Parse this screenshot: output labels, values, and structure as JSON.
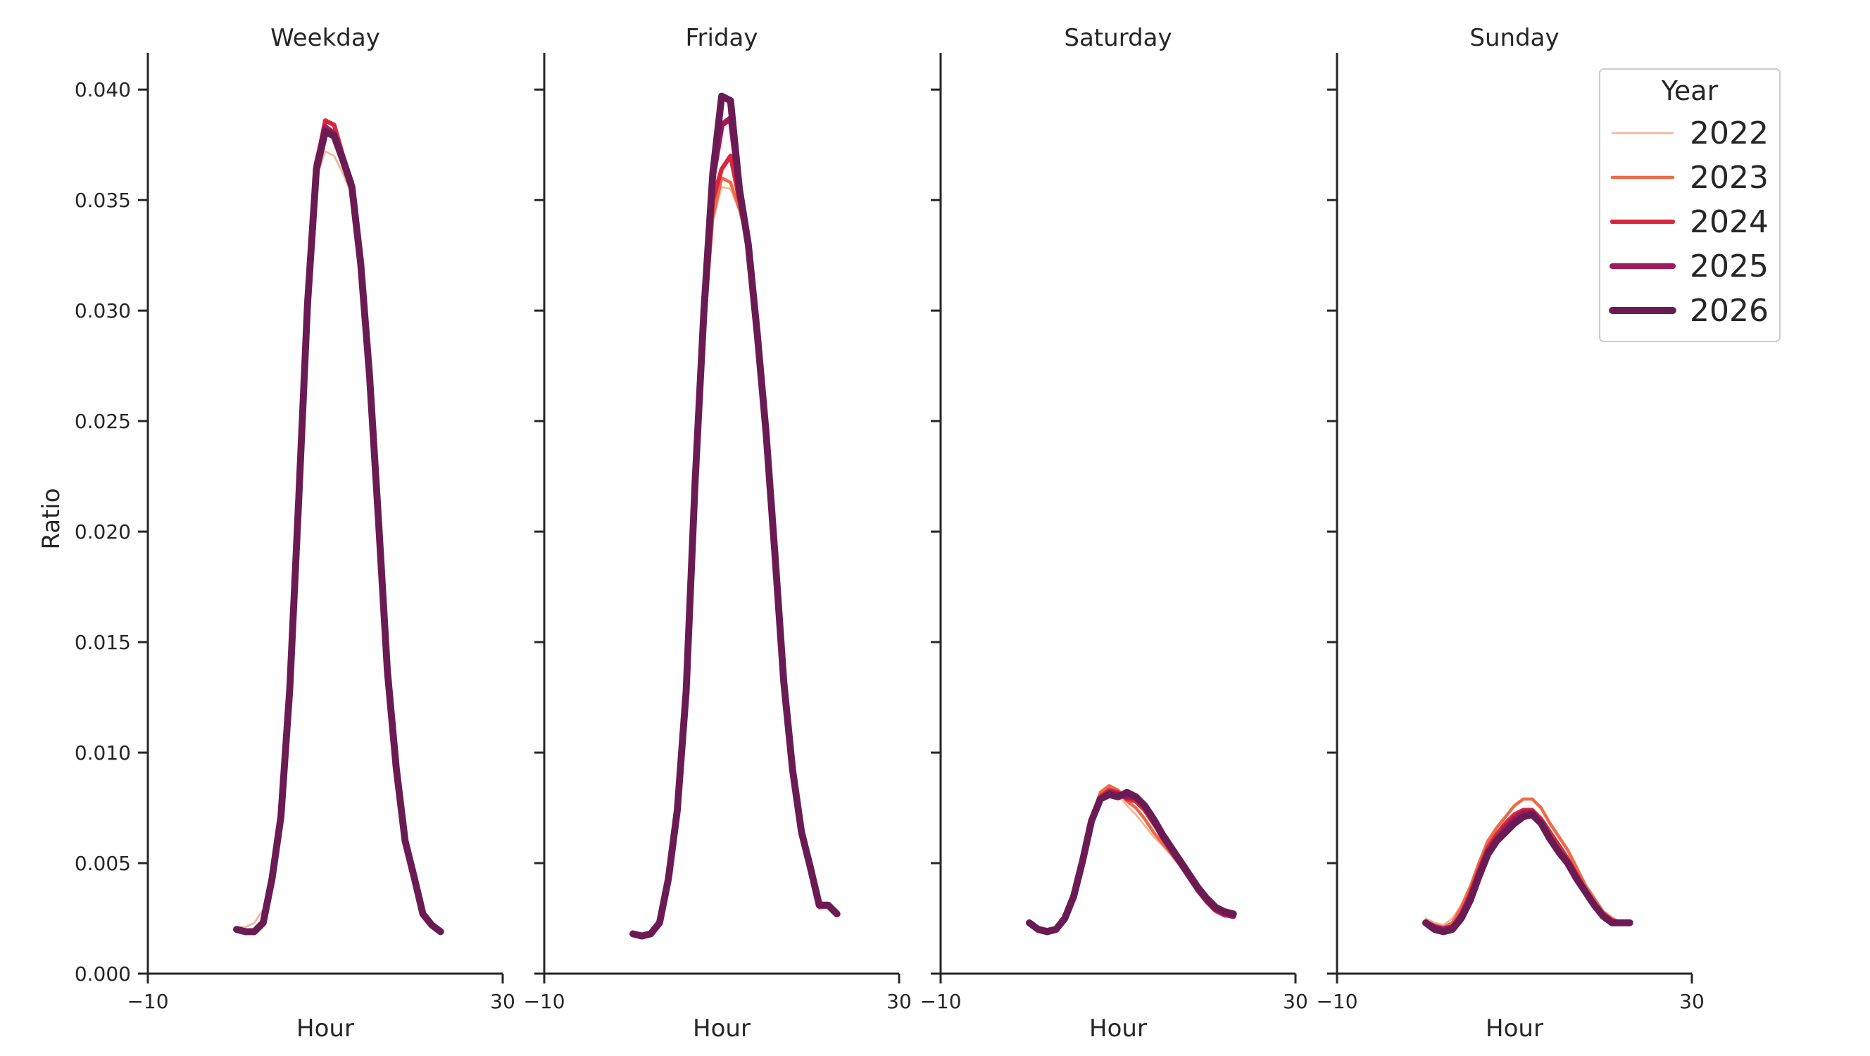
{
  "chart_data": {
    "type": "line",
    "ylabel": "Ratio",
    "xlabel": "Hour",
    "xlim": [
      -10,
      30
    ],
    "ylim": [
      0,
      0.0416
    ],
    "x_ticks": [
      -10,
      30
    ],
    "x_tick_labels": [
      "−10",
      "30"
    ],
    "y_ticks": [
      0,
      0.005,
      0.01,
      0.015,
      0.02,
      0.025,
      0.03,
      0.035,
      0.04
    ],
    "y_tick_labels": [
      "0.000",
      "0.005",
      "0.010",
      "0.015",
      "0.020",
      "0.025",
      "0.030",
      "0.035",
      "0.040"
    ],
    "grid": false,
    "legend": {
      "title": "Year",
      "placement": "top-right"
    },
    "series_styles": [
      {
        "name": "2022",
        "color": "#f5b697",
        "width": 1.5
      },
      {
        "name": "2023",
        "color": "#ee6a47",
        "width": 2.5
      },
      {
        "name": "2024",
        "color": "#d8273c",
        "width": 3.5
      },
      {
        "name": "2025",
        "color": "#a11a5b",
        "width": 4.5
      },
      {
        "name": "2026",
        "color": "#6b1b53",
        "width": 5.5
      }
    ],
    "panels": [
      {
        "title": "Weekday",
        "x": [
          0,
          1,
          2,
          3,
          4,
          5,
          6,
          7,
          8,
          9,
          10,
          11,
          12,
          13,
          14,
          15,
          16,
          17,
          18,
          19,
          20,
          21,
          22,
          23
        ],
        "series": [
          {
            "name": "2022",
            "values": [
              0.0021,
              0.0021,
              0.0023,
              0.0029,
              0.0045,
              0.0072,
              0.0128,
              0.0215,
              0.03,
              0.036,
              0.0372,
              0.037,
              0.0362,
              0.0352,
              0.032,
              0.027,
              0.0205,
              0.0137,
              0.0094,
              0.006,
              0.0044,
              0.0028,
              0.0022,
              0.0019
            ]
          },
          {
            "name": "2023",
            "values": [
              0.002,
              0.0019,
              0.0019,
              0.0024,
              0.0043,
              0.0071,
              0.0129,
              0.0214,
              0.0302,
              0.0364,
              0.0382,
              0.038,
              0.0368,
              0.0356,
              0.0321,
              0.027,
              0.0205,
              0.0137,
              0.0093,
              0.006,
              0.0044,
              0.0027,
              0.0022,
              0.0019
            ]
          },
          {
            "name": "2024",
            "values": [
              0.002,
              0.0019,
              0.0019,
              0.0023,
              0.0043,
              0.0071,
              0.0129,
              0.0214,
              0.0303,
              0.0366,
              0.0386,
              0.0384,
              0.037,
              0.0358,
              0.0322,
              0.027,
              0.0205,
              0.0137,
              0.0093,
              0.006,
              0.0044,
              0.0027,
              0.0022,
              0.0019
            ]
          },
          {
            "name": "2025",
            "values": [
              0.002,
              0.0019,
              0.0019,
              0.0023,
              0.0043,
              0.0071,
              0.0129,
              0.0214,
              0.0303,
              0.0366,
              0.0383,
              0.038,
              0.0368,
              0.0356,
              0.0321,
              0.027,
              0.0205,
              0.0137,
              0.0093,
              0.006,
              0.0044,
              0.0027,
              0.0022,
              0.0019
            ]
          },
          {
            "name": "2026",
            "values": [
              0.002,
              0.0019,
              0.0019,
              0.0023,
              0.0043,
              0.0071,
              0.0129,
              0.0214,
              0.0303,
              0.0364,
              0.0381,
              0.0379,
              0.0368,
              0.0356,
              0.0321,
              0.027,
              0.0205,
              0.0137,
              0.0093,
              0.006,
              0.0044,
              0.0027,
              0.0022,
              0.0019
            ]
          }
        ]
      },
      {
        "title": "Friday",
        "x": [
          0,
          1,
          2,
          3,
          4,
          5,
          6,
          7,
          8,
          9,
          10,
          11,
          12,
          13,
          14,
          15,
          16,
          17,
          18,
          19,
          20,
          21,
          22,
          23
        ],
        "series": [
          {
            "name": "2022",
            "values": [
              0.0018,
              0.0018,
              0.0019,
              0.0025,
              0.0044,
              0.0074,
              0.0128,
              0.022,
              0.029,
              0.034,
              0.0356,
              0.0355,
              0.0345,
              0.033,
              0.029,
              0.0245,
              0.019,
              0.0132,
              0.009,
              0.006,
              0.0044,
              0.0029,
              0.003,
              0.0027
            ]
          },
          {
            "name": "2023",
            "values": [
              0.0018,
              0.0017,
              0.0018,
              0.0023,
              0.0043,
              0.0074,
              0.0128,
              0.022,
              0.029,
              0.0342,
              0.036,
              0.0358,
              0.0346,
              0.033,
              0.029,
              0.0245,
              0.019,
              0.0132,
              0.0092,
              0.0062,
              0.0045,
              0.003,
              0.003,
              0.0027
            ]
          },
          {
            "name": "2024",
            "values": [
              0.0018,
              0.0017,
              0.0018,
              0.0023,
              0.0043,
              0.0074,
              0.0128,
              0.0222,
              0.0292,
              0.035,
              0.0364,
              0.037,
              0.035,
              0.033,
              0.029,
              0.0245,
              0.019,
              0.0132,
              0.0092,
              0.0063,
              0.0047,
              0.0031,
              0.0031,
              0.0027
            ]
          },
          {
            "name": "2025",
            "values": [
              0.0018,
              0.0017,
              0.0018,
              0.0023,
              0.0043,
              0.0074,
              0.0128,
              0.0222,
              0.0295,
              0.036,
              0.0384,
              0.0387,
              0.0355,
              0.033,
              0.029,
              0.0245,
              0.019,
              0.0132,
              0.0092,
              0.0064,
              0.0048,
              0.0031,
              0.0031,
              0.0027
            ]
          },
          {
            "name": "2026",
            "values": [
              0.0018,
              0.0017,
              0.0018,
              0.0023,
              0.0043,
              0.0074,
              0.0128,
              0.0222,
              0.03,
              0.0362,
              0.0397,
              0.0395,
              0.0355,
              0.033,
              0.029,
              0.0245,
              0.019,
              0.0132,
              0.0092,
              0.0064,
              0.0048,
              0.0031,
              0.0031,
              0.0027
            ]
          }
        ]
      },
      {
        "title": "Saturday",
        "x": [
          0,
          1,
          2,
          3,
          4,
          5,
          6,
          7,
          8,
          9,
          10,
          11,
          12,
          13,
          14,
          15,
          16,
          17,
          18,
          19,
          20,
          21,
          22,
          23
        ],
        "series": [
          {
            "name": "2022",
            "values": [
              0.0023,
              0.0021,
              0.002,
              0.0021,
              0.0026,
              0.0035,
              0.005,
              0.0068,
              0.0079,
              0.0083,
              0.0081,
              0.0076,
              0.0072,
              0.0067,
              0.0062,
              0.0058,
              0.0054,
              0.0049,
              0.0043,
              0.0037,
              0.0032,
              0.0028,
              0.0027,
              0.0026
            ]
          },
          {
            "name": "2023",
            "values": [
              0.0023,
              0.0021,
              0.002,
              0.0021,
              0.0026,
              0.0036,
              0.0052,
              0.007,
              0.0082,
              0.0085,
              0.0083,
              0.0078,
              0.0075,
              0.007,
              0.0064,
              0.0059,
              0.0054,
              0.0049,
              0.0043,
              0.0037,
              0.0032,
              0.0028,
              0.0026,
              0.0026
            ]
          },
          {
            "name": "2024",
            "values": [
              0.0023,
              0.002,
              0.0019,
              0.002,
              0.0025,
              0.0035,
              0.0051,
              0.0069,
              0.008,
              0.0083,
              0.0082,
              0.0079,
              0.0078,
              0.0074,
              0.0068,
              0.0062,
              0.0056,
              0.005,
              0.0044,
              0.0038,
              0.0033,
              0.0029,
              0.0027,
              0.0026
            ]
          },
          {
            "name": "2025",
            "values": [
              0.0023,
              0.002,
              0.0019,
              0.002,
              0.0025,
              0.0035,
              0.0051,
              0.0069,
              0.0079,
              0.0082,
              0.0081,
              0.008,
              0.008,
              0.0076,
              0.0069,
              0.0062,
              0.0056,
              0.005,
              0.0044,
              0.0038,
              0.0033,
              0.0029,
              0.0027,
              0.0026
            ]
          },
          {
            "name": "2026",
            "values": [
              0.0023,
              0.002,
              0.0019,
              0.002,
              0.0025,
              0.0035,
              0.0051,
              0.0069,
              0.0079,
              0.0081,
              0.008,
              0.0082,
              0.008,
              0.0076,
              0.007,
              0.0063,
              0.0057,
              0.0051,
              0.0045,
              0.0039,
              0.0034,
              0.003,
              0.0028,
              0.0027
            ]
          }
        ]
      },
      {
        "title": "Sunday",
        "x": [
          0,
          1,
          2,
          3,
          4,
          5,
          6,
          7,
          8,
          9,
          10,
          11,
          12,
          13,
          14,
          15,
          16,
          17,
          18,
          19,
          20,
          21,
          22,
          23
        ],
        "series": [
          {
            "name": "2022",
            "values": [
              0.0025,
              0.0023,
              0.0022,
              0.0025,
              0.0031,
              0.004,
              0.005,
              0.0058,
              0.0064,
              0.0068,
              0.0072,
              0.0074,
              0.0074,
              0.007,
              0.0064,
              0.0058,
              0.0052,
              0.0046,
              0.004,
              0.0034,
              0.0028,
              0.0025,
              0.0023,
              0.0023
            ]
          },
          {
            "name": "2023",
            "values": [
              0.0024,
              0.0022,
              0.0021,
              0.0023,
              0.003,
              0.0039,
              0.005,
              0.006,
              0.0066,
              0.0071,
              0.0076,
              0.0079,
              0.0079,
              0.0075,
              0.0068,
              0.0062,
              0.0056,
              0.0048,
              0.004,
              0.0034,
              0.0028,
              0.0025,
              0.0023,
              0.0023
            ]
          },
          {
            "name": "2024",
            "values": [
              0.0023,
              0.0021,
              0.002,
              0.0021,
              0.0027,
              0.0036,
              0.0047,
              0.0057,
              0.0063,
              0.0068,
              0.0072,
              0.0074,
              0.0074,
              0.007,
              0.0064,
              0.0058,
              0.0052,
              0.0045,
              0.0038,
              0.0032,
              0.0027,
              0.0024,
              0.0023,
              0.0023
            ]
          },
          {
            "name": "2025",
            "values": [
              0.0023,
              0.0021,
              0.002,
              0.0021,
              0.0026,
              0.0034,
              0.0045,
              0.0055,
              0.0061,
              0.0066,
              0.007,
              0.0073,
              0.0073,
              0.0068,
              0.0061,
              0.0055,
              0.005,
              0.0043,
              0.0037,
              0.0031,
              0.0026,
              0.0023,
              0.0023,
              0.0023
            ]
          },
          {
            "name": "2026",
            "values": [
              0.0023,
              0.002,
              0.0019,
              0.002,
              0.0025,
              0.0033,
              0.0044,
              0.0054,
              0.006,
              0.0064,
              0.0068,
              0.0071,
              0.0072,
              0.0068,
              0.0061,
              0.0055,
              0.005,
              0.0043,
              0.0037,
              0.0031,
              0.0026,
              0.0023,
              0.0023,
              0.0023
            ]
          }
        ]
      }
    ]
  }
}
